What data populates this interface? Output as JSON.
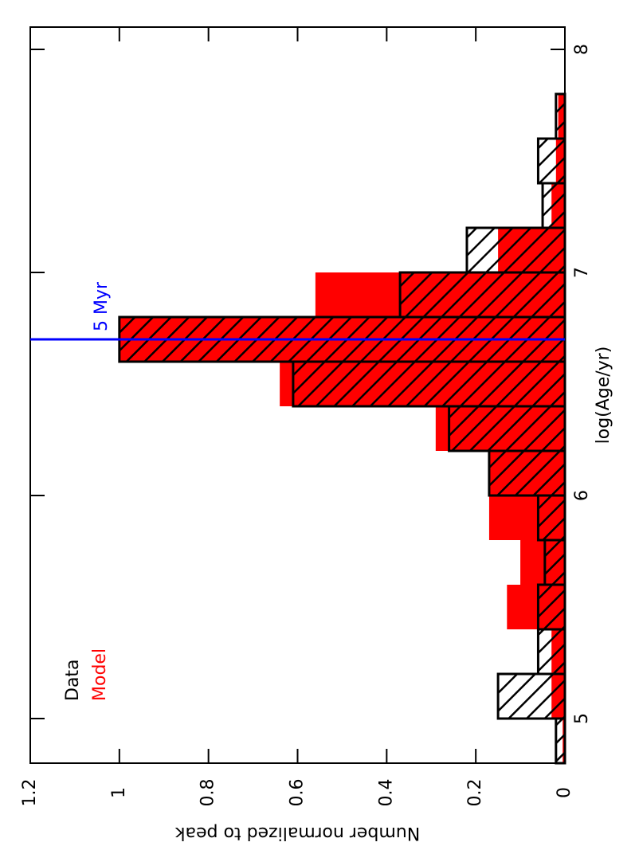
{
  "chart_data": {
    "type": "histogram",
    "xlabel": "log(Age/yr)",
    "ylabel": "Number normalized to peak",
    "bins": [
      4.8,
      5.0,
      5.2,
      5.4,
      5.6,
      5.8,
      6.0,
      6.2,
      6.4,
      6.6,
      6.8,
      7.0,
      7.2,
      7.4,
      7.6,
      7.8
    ],
    "series": [
      {
        "name": "Data",
        "color": "#000000",
        "values": [
          0.02,
          0.15,
          0.06,
          0.06,
          0.045,
          0.06,
          0.17,
          0.26,
          0.61,
          1.0,
          0.37,
          0.22,
          0.05,
          0.06,
          0.02
        ]
      },
      {
        "name": "Model",
        "color": "#ff0000",
        "values": [
          0.005,
          0.03,
          0.03,
          0.13,
          0.1,
          0.17,
          0.17,
          0.29,
          0.64,
          1.0,
          0.56,
          0.15,
          0.03,
          0.02,
          0.015
        ]
      }
    ],
    "xlim": [
      4.8,
      8.1
    ],
    "ylim": [
      0,
      1.2
    ],
    "xticks": [
      5,
      6,
      7,
      8
    ],
    "yticks": [
      0,
      0.2,
      0.4,
      0.6,
      0.8,
      1,
      1.2
    ],
    "annotations": [
      {
        "text": "5 Myr",
        "x": 6.7,
        "color": "#0000ff"
      }
    ]
  }
}
